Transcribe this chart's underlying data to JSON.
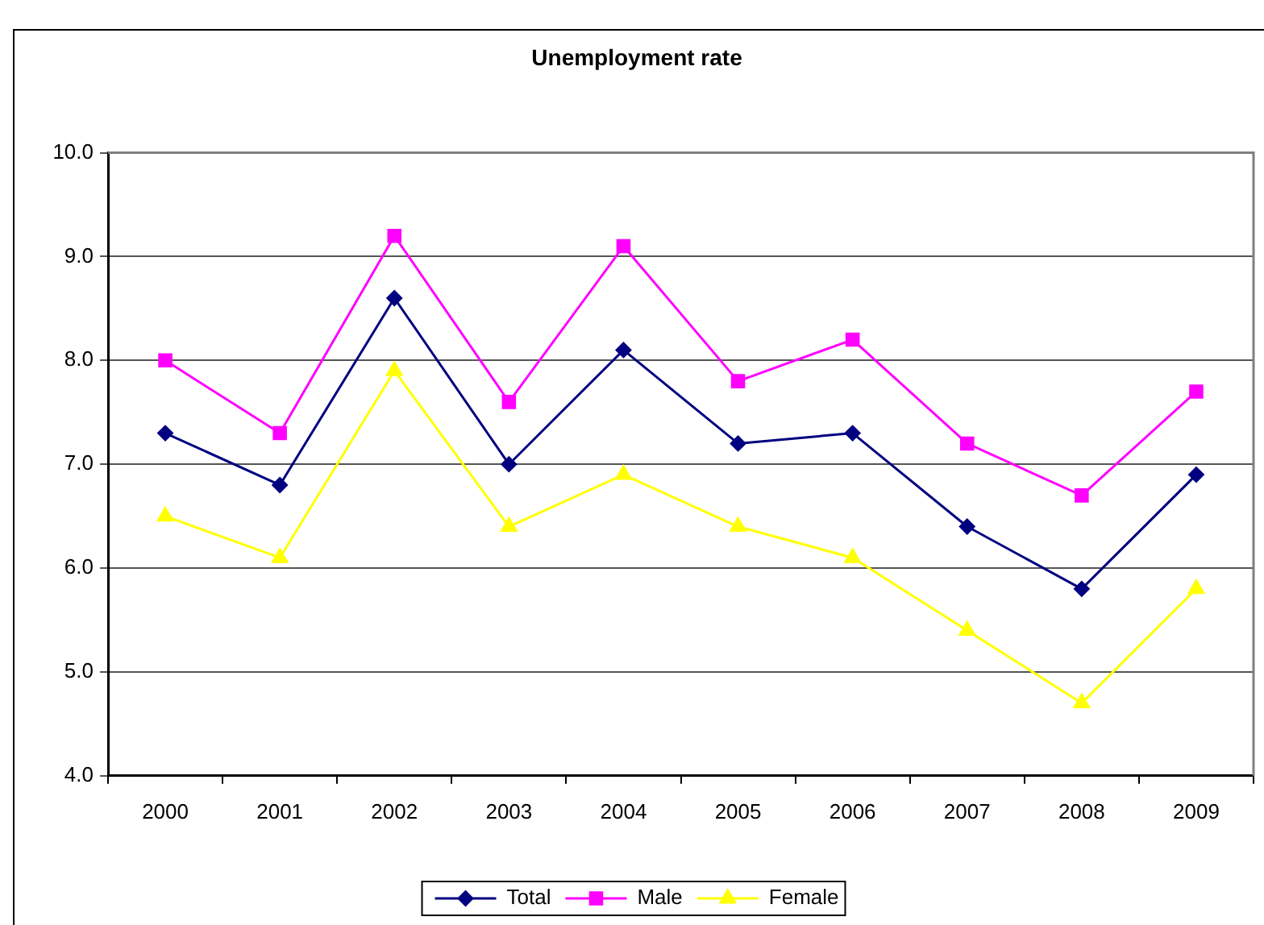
{
  "chart_data": {
    "type": "line",
    "title": "Unemployment rate",
    "categories": [
      "2000",
      "2001",
      "2002",
      "2003",
      "2004",
      "2005",
      "2006",
      "2007",
      "2008",
      "2009"
    ],
    "series": [
      {
        "name": "Total",
        "color": "#000080",
        "marker": "diamond",
        "values": [
          7.3,
          6.8,
          8.6,
          7.0,
          8.1,
          7.2,
          7.3,
          6.4,
          5.8,
          6.9
        ]
      },
      {
        "name": "Male",
        "color": "#ff00ff",
        "marker": "square",
        "values": [
          8.0,
          7.3,
          9.2,
          7.6,
          9.1,
          7.8,
          8.2,
          7.2,
          6.7,
          7.7
        ]
      },
      {
        "name": "Female",
        "color": "#ffff00",
        "marker": "triangle",
        "values": [
          6.5,
          6.1,
          7.9,
          6.4,
          6.9,
          6.4,
          6.1,
          5.4,
          4.7,
          5.8
        ]
      }
    ],
    "ylim": [
      4,
      10
    ],
    "yticks": [
      {
        "value": 4,
        "label": "4.0"
      },
      {
        "value": 5,
        "label": "5.0"
      },
      {
        "value": 6,
        "label": "6.0"
      },
      {
        "value": 7,
        "label": "7.0"
      },
      {
        "value": 8,
        "label": "8.0"
      },
      {
        "value": 9,
        "label": "9.0"
      },
      {
        "value": 10,
        "label": "10.0"
      }
    ],
    "grid": "y",
    "legend": "bottom",
    "line_style": "solid"
  }
}
